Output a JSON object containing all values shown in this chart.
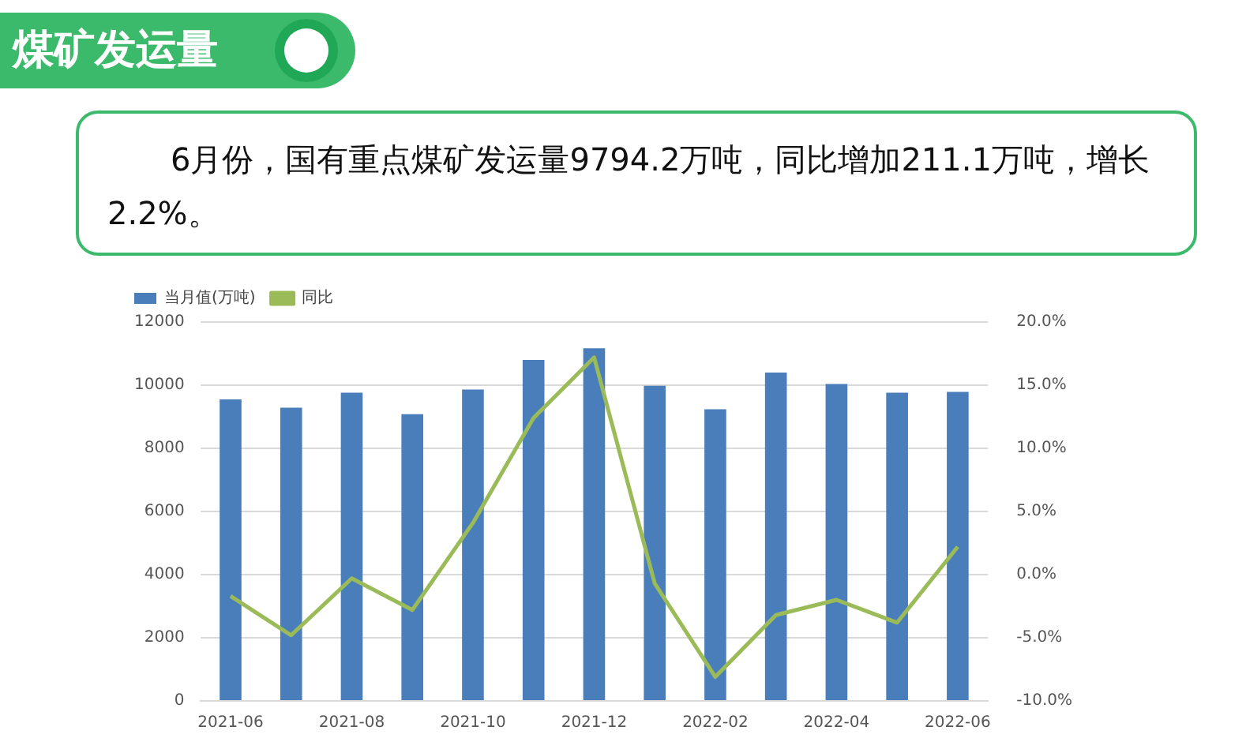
{
  "chart_data": {
    "type": "bar",
    "title": "煤矿发运量",
    "annotations": [
      "6月份，国有重点煤矿发运量9794.2万吨，同比增加211.1万吨，增长2.2%。"
    ],
    "categories": [
      "2021-06",
      null,
      "2021-08",
      null,
      "2021-10",
      null,
      "2021-12",
      null,
      "2022-02",
      null,
      "2022-04",
      null,
      "2022-06"
    ],
    "series": [
      {
        "name": "当月值(万吨)",
        "color": "#4a7ebb",
        "values": [
          9550,
          9290,
          9760,
          9080,
          9860,
          10800,
          11170,
          9980,
          9240,
          10400,
          10040,
          9760,
          9790
        ]
      },
      {
        "name": "同比",
        "type": "line",
        "axis": "y2",
        "color": "#9bbb59",
        "values": [
          -1.7,
          -4.8,
          -0.3,
          -2.8,
          4.1,
          12.4,
          17.2,
          -0.7,
          -8.1,
          -3.2,
          -2.0,
          -3.8,
          2.2
        ]
      }
    ],
    "ylim": [
      0,
      12000
    ],
    "yticks": [
      0,
      2000,
      4000,
      6000,
      8000,
      10000,
      12000
    ],
    "y2lim": [
      -10,
      20
    ],
    "y2ticks": [
      {
        "value": -10,
        "label": "-10.0%"
      },
      {
        "value": -5,
        "label": "-5.0%"
      },
      {
        "value": 0,
        "label": "0.0%"
      },
      {
        "value": 5,
        "label": "5.0%"
      },
      {
        "value": 10,
        "label": "10.0%"
      },
      {
        "value": 15,
        "label": "15.0%"
      },
      {
        "value": 20,
        "label": "20.0%"
      }
    ],
    "grid": "y",
    "legend": "top left",
    "marker": "none"
  }
}
